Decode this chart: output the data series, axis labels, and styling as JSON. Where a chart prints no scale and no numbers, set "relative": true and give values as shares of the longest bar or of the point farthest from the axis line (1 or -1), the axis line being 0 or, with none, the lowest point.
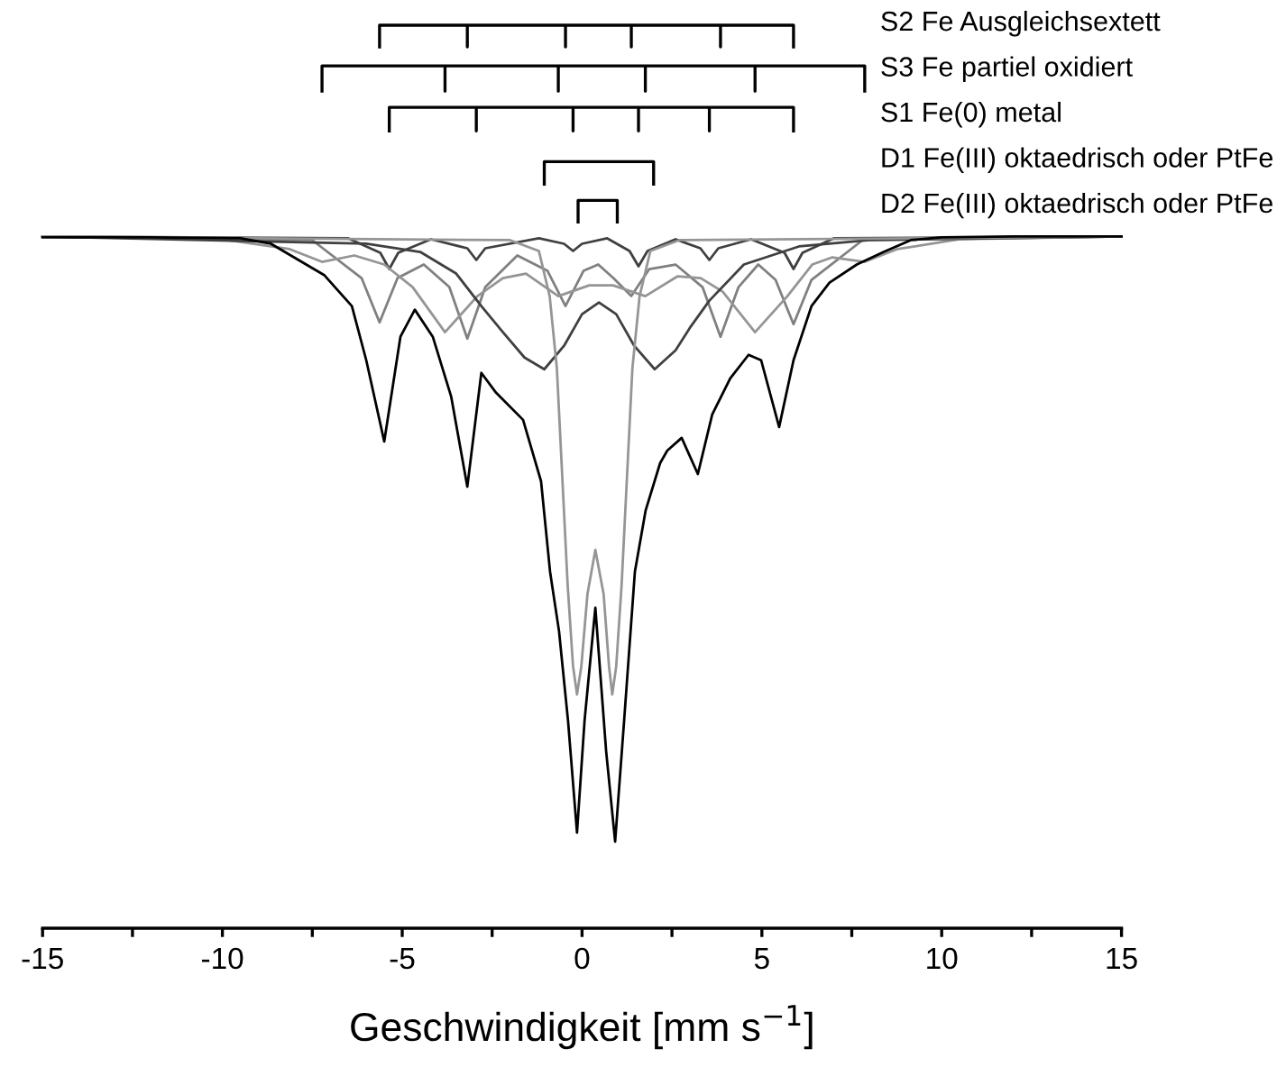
{
  "chart_data": {
    "type": "line",
    "relative": true,
    "xlabel": "Geschwindigkeit [mm s$^{−1}$]",
    "xlim": [
      -15,
      15
    ],
    "xticks": [
      -15,
      {
        "value": -12.5,
        "label": null
      },
      -10,
      {
        "value": -7.5,
        "label": null
      },
      -5,
      {
        "value": -2.5,
        "label": null
      },
      0,
      {
        "value": 2.5,
        "label": null
      },
      5,
      {
        "value": 7.5,
        "label": null
      },
      10,
      {
        "value": 12.5,
        "label": null
      },
      15
    ],
    "grid": false,
    "legend": "top right",
    "series": [
      {
        "color": "#000000",
        "x": [
          -15,
          -12,
          -9.5,
          -8.65,
          -7.16,
          -6.4,
          -6.0,
          -5.5,
          -5.05,
          -4.65,
          -4.15,
          -3.64,
          -3.19,
          -2.8,
          -2.39,
          -1.64,
          -1.14,
          -0.89,
          -0.64,
          -0.39,
          -0.14,
          0.07,
          0.37,
          0.67,
          0.92,
          1.17,
          1.47,
          1.77,
          2.17,
          2.37,
          2.77,
          3.22,
          3.62,
          4.12,
          4.63,
          4.98,
          5.48,
          5.88,
          6.38,
          6.88,
          7.64,
          8.39,
          9.14,
          10,
          12,
          15
        ],
        "values": [
          0.765,
          0.765,
          0.764,
          0.758,
          0.723,
          0.689,
          0.629,
          0.539,
          0.655,
          0.685,
          0.655,
          0.589,
          0.489,
          0.615,
          0.593,
          0.563,
          0.495,
          0.395,
          0.329,
          0.23,
          0.106,
          0.23,
          0.355,
          0.196,
          0.096,
          0.23,
          0.395,
          0.463,
          0.515,
          0.529,
          0.543,
          0.503,
          0.569,
          0.609,
          0.635,
          0.629,
          0.555,
          0.629,
          0.689,
          0.715,
          0.735,
          0.749,
          0.762,
          0.765,
          0.766,
          0.766
        ]
      },
      {
        "color": "#404040",
        "x": [
          -15,
          -6.5,
          -5.61,
          -5.36,
          -5.11,
          -4.2,
          -3.19,
          -2.94,
          -2.69,
          -1.2,
          -0.5,
          -0.25,
          0,
          0.7,
          1.32,
          1.57,
          1.82,
          2.6,
          3.29,
          3.54,
          3.79,
          4.7,
          5.63,
          5.88,
          6.13,
          7,
          15
        ],
        "values": [
          0.766,
          0.764,
          0.748,
          0.73,
          0.748,
          0.763,
          0.753,
          0.74,
          0.753,
          0.764,
          0.758,
          0.75,
          0.758,
          0.764,
          0.75,
          0.733,
          0.75,
          0.763,
          0.753,
          0.74,
          0.753,
          0.763,
          0.748,
          0.73,
          0.748,
          0.764,
          0.766
        ]
      },
      {
        "color": "#808080",
        "x": [
          -15,
          -7.5,
          -6.13,
          -5.63,
          -5.13,
          -4.4,
          -3.69,
          -3.19,
          -2.69,
          -1.8,
          -0.96,
          -0.46,
          0.04,
          0.45,
          0.87,
          1.37,
          1.87,
          2.6,
          3.35,
          3.85,
          4.35,
          4.9,
          5.38,
          5.88,
          6.38,
          7.8,
          15
        ],
        "values": [
          0.766,
          0.762,
          0.72,
          0.671,
          0.72,
          0.735,
          0.71,
          0.653,
          0.71,
          0.745,
          0.728,
          0.689,
          0.728,
          0.735,
          0.72,
          0.7,
          0.73,
          0.735,
          0.71,
          0.655,
          0.71,
          0.735,
          0.718,
          0.669,
          0.718,
          0.762,
          0.766
        ]
      },
      {
        "color": "#959595",
        "x": [
          -15,
          -10,
          -8.13,
          -7.23,
          -6.33,
          -5.5,
          -4.71,
          -3.81,
          -2.91,
          -2.2,
          -1.56,
          -0.66,
          0.2,
          0.86,
          1.76,
          2.66,
          3.3,
          3.91,
          4.81,
          5.71,
          6.4,
          6.96,
          7.86,
          8.76,
          10.5,
          15
        ],
        "values": [
          0.766,
          0.763,
          0.752,
          0.738,
          0.745,
          0.735,
          0.71,
          0.66,
          0.7,
          0.72,
          0.725,
          0.7,
          0.712,
          0.712,
          0.7,
          0.722,
          0.72,
          0.705,
          0.66,
          0.7,
          0.735,
          0.743,
          0.738,
          0.752,
          0.763,
          0.766
        ]
      },
      {
        "color": "#404040",
        "x": [
          -15,
          -6,
          -4.5,
          -3.5,
          -2.8,
          -2.2,
          -1.6,
          -1.05,
          -0.5,
          0,
          0.47,
          0.95,
          1.45,
          2.02,
          2.6,
          3.0,
          3.54,
          4.5,
          6.03,
          8,
          15
        ],
        "values": [
          0.766,
          0.758,
          0.749,
          0.725,
          0.689,
          0.66,
          0.632,
          0.619,
          0.645,
          0.68,
          0.693,
          0.68,
          0.645,
          0.619,
          0.64,
          0.665,
          0.695,
          0.735,
          0.755,
          0.762,
          0.766
        ]
      },
      {
        "color": "#959595",
        "x": [
          -15,
          -2,
          -1.2,
          -0.9,
          -0.7,
          -0.55,
          -0.4,
          -0.25,
          -0.14,
          -0.02,
          0.15,
          0.37,
          0.6,
          0.75,
          0.84,
          0.95,
          1.1,
          1.25,
          1.4,
          1.6,
          1.9,
          2.7,
          15
        ],
        "values": [
          0.766,
          0.762,
          0.75,
          0.7,
          0.62,
          0.5,
          0.38,
          0.29,
          0.259,
          0.29,
          0.37,
          0.419,
          0.37,
          0.29,
          0.259,
          0.29,
          0.38,
          0.5,
          0.62,
          0.7,
          0.75,
          0.762,
          0.766
        ]
      },
      {
        "name": "S2 Fe Ausgleichsextett",
        "color": "#000000",
        "x": [
          -5.63,
          -5.63,
          -3.19,
          -3.19,
          -3.19,
          -0.46,
          -0.46,
          -0.46,
          1.37,
          1.37,
          1.37,
          3.85,
          3.85,
          3.85,
          5.88,
          5.88
        ],
        "values": [
          0.976,
          1,
          1,
          0.976,
          1,
          1,
          0.976,
          1,
          1,
          0.976,
          1,
          1,
          0.976,
          1,
          1,
          0.976
        ]
      },
      {
        "name": "S3 Fe partiel oxidiert",
        "color": "#000000",
        "x": [
          -7.23,
          -7.23,
          -3.81,
          -3.81,
          -3.81,
          -0.66,
          -0.66,
          -0.66,
          1.76,
          1.76,
          1.76,
          4.81,
          4.81,
          4.81,
          7.86,
          7.86
        ],
        "values": [
          0.927,
          0.955,
          0.955,
          0.927,
          0.955,
          0.955,
          0.927,
          0.955,
          0.955,
          0.927,
          0.955,
          0.955,
          0.927,
          0.955,
          0.955,
          0.927
        ]
      },
      {
        "name": "S1 Fe(0) metal",
        "color": "#000000",
        "x": [
          -5.36,
          -5.36,
          -2.94,
          -2.94,
          -2.94,
          -0.25,
          -0.25,
          -0.25,
          1.57,
          1.57,
          1.57,
          3.54,
          3.54,
          3.54,
          5.88,
          5.88
        ],
        "values": [
          0.883,
          0.909,
          0.909,
          0.883,
          0.909,
          0.909,
          0.883,
          0.909,
          0.909,
          0.883,
          0.909,
          0.909,
          0.883,
          0.909,
          0.909,
          0.883
        ]
      },
      {
        "name": "D1 Fe(III) oktaedrisch oder PtFe",
        "color": "#000000",
        "x": [
          -1.05,
          -1.05,
          1.99,
          1.99
        ],
        "values": [
          0.824,
          0.849,
          0.849,
          0.824
        ]
      },
      {
        "name": "D2 Fe(III) oktaedrisch oder PtFe",
        "color": "#000000",
        "x": [
          -0.11,
          -0.11,
          0.98,
          0.98
        ],
        "values": [
          0.782,
          0.806,
          0.806,
          0.782
        ]
      }
    ]
  }
}
